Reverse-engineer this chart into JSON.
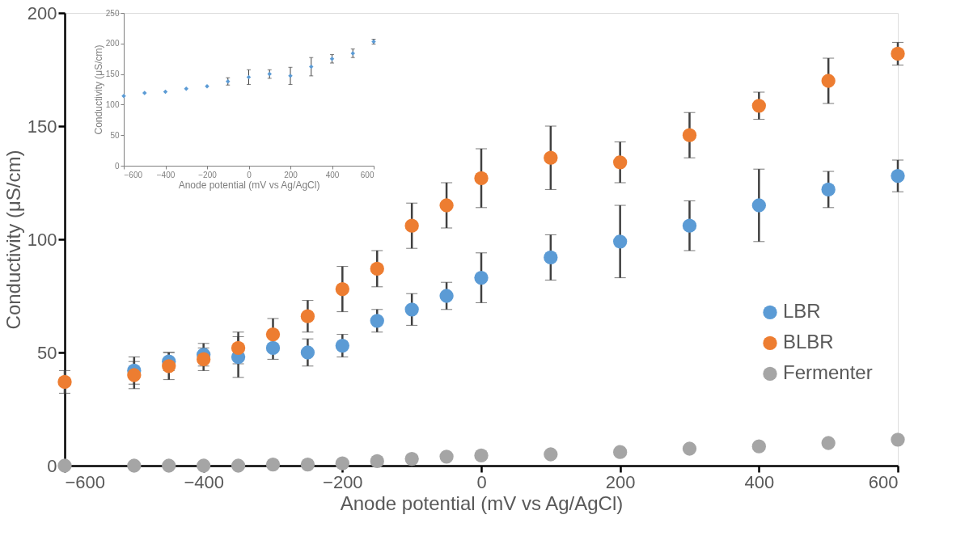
{
  "chart_data": [
    {
      "type": "scatter",
      "xlabel": "Anode potential (mV vs Ag/AgCl)",
      "ylabel": "Conductivity (μS/cm)",
      "x": [
        -600,
        -500,
        -450,
        -400,
        -350,
        -300,
        -250,
        -200,
        -150,
        -100,
        -50,
        0,
        100,
        200,
        300,
        400,
        500,
        600
      ],
      "series": [
        {
          "name": "LBR",
          "color": "#5b9bd5",
          "values": [
            null,
            42,
            46,
            49,
            48,
            52,
            50,
            53,
            64,
            69,
            75,
            83,
            92,
            99,
            106,
            115,
            122,
            128
          ],
          "errors": [
            null,
            6,
            4,
            5,
            9,
            5,
            6,
            5,
            5,
            7,
            6,
            11,
            10,
            16,
            11,
            16,
            8,
            7
          ]
        },
        {
          "name": "BLBR",
          "color": "#ed7d31",
          "values": [
            37,
            40,
            44,
            47,
            52,
            58,
            66,
            78,
            87,
            106,
            115,
            127,
            136,
            134,
            146,
            159,
            170,
            182
          ],
          "errors": [
            5,
            6,
            6,
            5,
            7,
            7,
            7,
            10,
            8,
            10,
            10,
            13,
            14,
            9,
            10,
            6,
            10,
            5
          ]
        },
        {
          "name": "Fermenter",
          "color": "#a5a5a5",
          "values": [
            0,
            0,
            0,
            0,
            0,
            0.5,
            0.5,
            1,
            2,
            3,
            4,
            4.5,
            5,
            6,
            7.5,
            8.5,
            10,
            11.5
          ]
        }
      ],
      "xlim": [
        -600,
        600
      ],
      "xticks": [
        -600,
        -400,
        -200,
        0,
        200,
        400,
        600
      ],
      "ylim": [
        0,
        200
      ],
      "yticks": [
        0,
        50,
        100,
        150,
        200
      ],
      "grid": false,
      "legend": "right",
      "marker": "circle"
    },
    {
      "type": "scatter",
      "xlabel": "Anode potential (mV vs Ag/AgCl)",
      "ylabel": "Conductivity (μS/cm)",
      "x": [
        -600,
        -500,
        -400,
        -300,
        -200,
        -100,
        0,
        100,
        200,
        300,
        400,
        500,
        600
      ],
      "series": [
        {
          "color": "#5b9bd5",
          "values": [
            114,
            119,
            121,
            126,
            130,
            138,
            145,
            150,
            147,
            162,
            175,
            184,
            203
          ],
          "errors": [
            null,
            null,
            null,
            null,
            null,
            6,
            12,
            7,
            14,
            15,
            7,
            7,
            4
          ]
        }
      ],
      "xlim": [
        -600,
        600
      ],
      "xticks": [
        -600,
        -400,
        -200,
        0,
        200,
        400,
        600
      ],
      "ylim": [
        0,
        250
      ],
      "yticks": [
        0,
        50,
        100,
        150,
        200,
        250
      ],
      "grid": false,
      "legend": false,
      "marker": "diamond"
    }
  ]
}
